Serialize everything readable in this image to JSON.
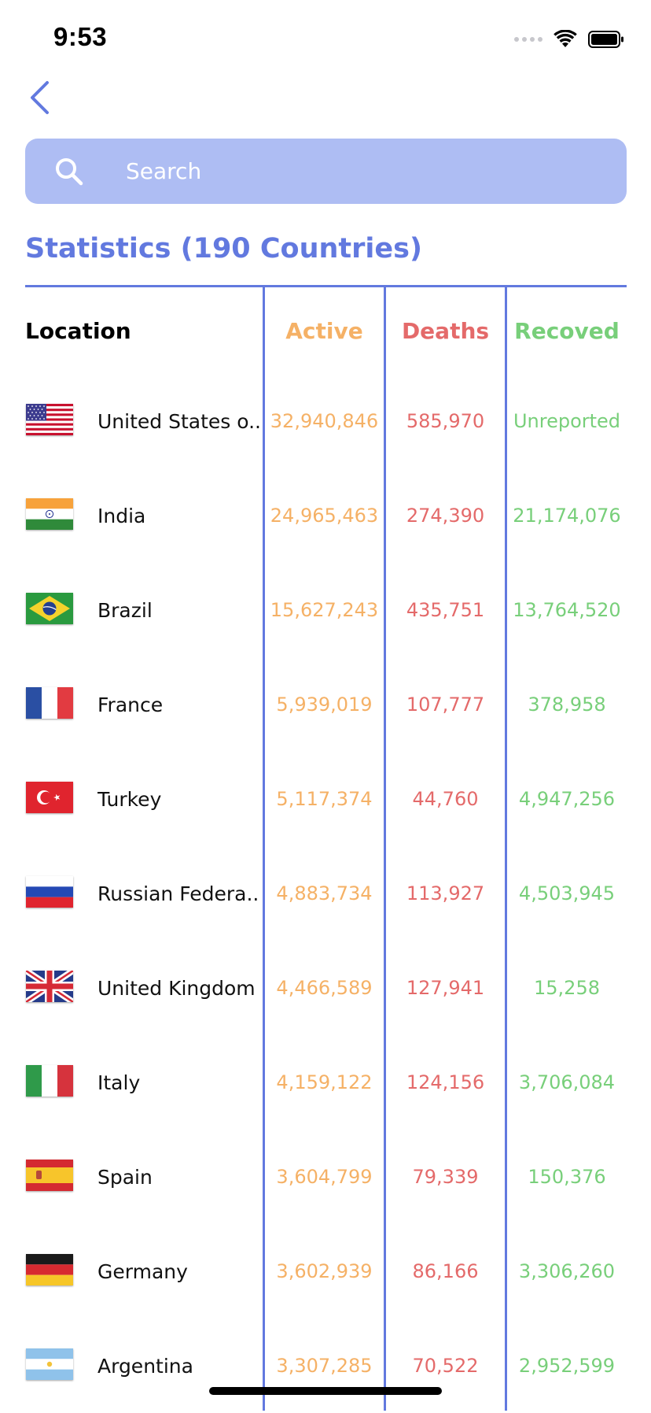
{
  "status_bar": {
    "time": "9:53"
  },
  "search": {
    "placeholder": "Search"
  },
  "page": {
    "title": "Statistics (190 Countries)"
  },
  "table": {
    "headers": {
      "location": "Location",
      "active": "Active",
      "deaths": "Deaths",
      "recovered": "Recoved"
    },
    "rows": [
      {
        "flag": "us-flag-icon",
        "country": "United States o...",
        "active": "32,940,846",
        "deaths": "585,970",
        "recovered": "Unreported"
      },
      {
        "flag": "india-flag-icon",
        "country": "India",
        "active": "24,965,463",
        "deaths": "274,390",
        "recovered": "21,174,076"
      },
      {
        "flag": "brazil-flag-icon",
        "country": "Brazil",
        "active": "15,627,243",
        "deaths": "435,751",
        "recovered": "13,764,520"
      },
      {
        "flag": "france-flag-icon",
        "country": "France",
        "active": "5,939,019",
        "deaths": "107,777",
        "recovered": "378,958"
      },
      {
        "flag": "turkey-flag-icon",
        "country": "Turkey",
        "active": "5,117,374",
        "deaths": "44,760",
        "recovered": "4,947,256"
      },
      {
        "flag": "russia-flag-icon",
        "country": "Russian Federa...",
        "active": "4,883,734",
        "deaths": "113,927",
        "recovered": "4,503,945"
      },
      {
        "flag": "uk-flag-icon",
        "country": "United Kingdom",
        "active": "4,466,589",
        "deaths": "127,941",
        "recovered": "15,258"
      },
      {
        "flag": "italy-flag-icon",
        "country": "Italy",
        "active": "4,159,122",
        "deaths": "124,156",
        "recovered": "3,706,084"
      },
      {
        "flag": "spain-flag-icon",
        "country": "Spain",
        "active": "3,604,799",
        "deaths": "79,339",
        "recovered": "150,376"
      },
      {
        "flag": "germany-flag-icon",
        "country": "Germany",
        "active": "3,602,939",
        "deaths": "86,166",
        "recovered": "3,306,260"
      },
      {
        "flag": "argentina-flag-icon",
        "country": "Argentina",
        "active": "3,307,285",
        "deaths": "70,522",
        "recovered": "2,952,599"
      }
    ]
  },
  "colors": {
    "accent": "#6279df",
    "search_bg": "#aebdf3",
    "active": "#f5b166",
    "deaths": "#e46a6a",
    "recovered": "#78cf7a"
  }
}
